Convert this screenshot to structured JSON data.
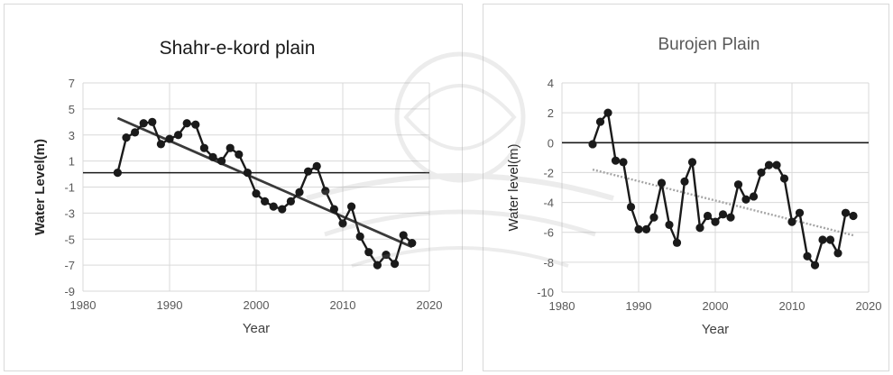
{
  "chart_data": [
    {
      "type": "line",
      "title": "Shahr-e-kord plain",
      "xlabel": "Year",
      "ylabel": "Water Level(m)",
      "xlim": [
        1980,
        2020
      ],
      "ylim": [
        -9,
        7
      ],
      "xticks": [
        1980,
        1990,
        2000,
        2010,
        2020
      ],
      "yticks": [
        7,
        5,
        3,
        1,
        -1,
        -3,
        -5,
        -7,
        -9
      ],
      "grid": "horizontal",
      "series": [
        {
          "x": [
            1984,
            1985,
            1986,
            1987,
            1988,
            1989,
            1990,
            1991,
            1992,
            1993,
            1994,
            1995,
            1996,
            1997,
            1998,
            1999,
            2000,
            2001,
            2002,
            2003,
            2004,
            2005,
            2006,
            2007,
            2008,
            2009,
            2010,
            2011,
            2012,
            2013,
            2014,
            2015,
            2016,
            2017,
            2018
          ],
          "values": [
            0.1,
            2.8,
            3.2,
            3.9,
            4.0,
            2.3,
            2.7,
            3.0,
            3.9,
            3.8,
            2.0,
            1.3,
            1.0,
            2.0,
            1.5,
            0.1,
            -1.5,
            -2.1,
            -2.5,
            -2.7,
            -2.1,
            -1.4,
            0.2,
            0.6,
            -1.3,
            -2.7,
            -3.8,
            -2.5,
            -4.8,
            -6.0,
            -7.0,
            -6.2,
            -6.9,
            -4.7,
            -5.3
          ],
          "color": "#1a1a1a"
        }
      ],
      "trendline": {
        "x": [
          1984,
          2018
        ],
        "values": [
          4.3,
          -5.6
        ],
        "color": "#3a3a3a",
        "style": "solid"
      },
      "reference_line": {
        "y": 0.1
      }
    },
    {
      "type": "line",
      "title": "Burojen Plain",
      "xlabel": "Year",
      "ylabel": "Water level(m)",
      "xlim": [
        1980,
        2020
      ],
      "ylim": [
        -10,
        4
      ],
      "xticks": [
        1980,
        1990,
        2000,
        2010,
        2020
      ],
      "yticks": [
        4,
        2,
        0,
        -2,
        -4,
        -6,
        -8,
        -10
      ],
      "grid": "horizontal",
      "series": [
        {
          "x": [
            1984,
            1985,
            1986,
            1987,
            1988,
            1989,
            1990,
            1991,
            1992,
            1993,
            1994,
            1995,
            1996,
            1997,
            1998,
            1999,
            2000,
            2001,
            2002,
            2003,
            2004,
            2005,
            2006,
            2007,
            2008,
            2009,
            2010,
            2011,
            2012,
            2013,
            2014,
            2015,
            2016,
            2017,
            2018
          ],
          "values": [
            -0.1,
            1.4,
            2.0,
            -1.2,
            -1.3,
            -4.3,
            -5.8,
            -5.8,
            -5.0,
            -2.7,
            -5.5,
            -6.7,
            -2.6,
            -1.3,
            -5.7,
            -4.9,
            -5.3,
            -4.8,
            -5.0,
            -2.8,
            -3.8,
            -3.6,
            -2.0,
            -1.5,
            -1.5,
            -2.4,
            -5.3,
            -4.7,
            -7.6,
            -8.2,
            -6.5,
            -6.5,
            -7.4,
            -4.7,
            -4.9
          ],
          "color": "#1a1a1a"
        }
      ],
      "trendline": {
        "x": [
          1984,
          2018
        ],
        "values": [
          -1.8,
          -6.2
        ],
        "color": "#a6a6a6",
        "style": "dotted"
      },
      "reference_line": {
        "y": 0
      }
    }
  ]
}
